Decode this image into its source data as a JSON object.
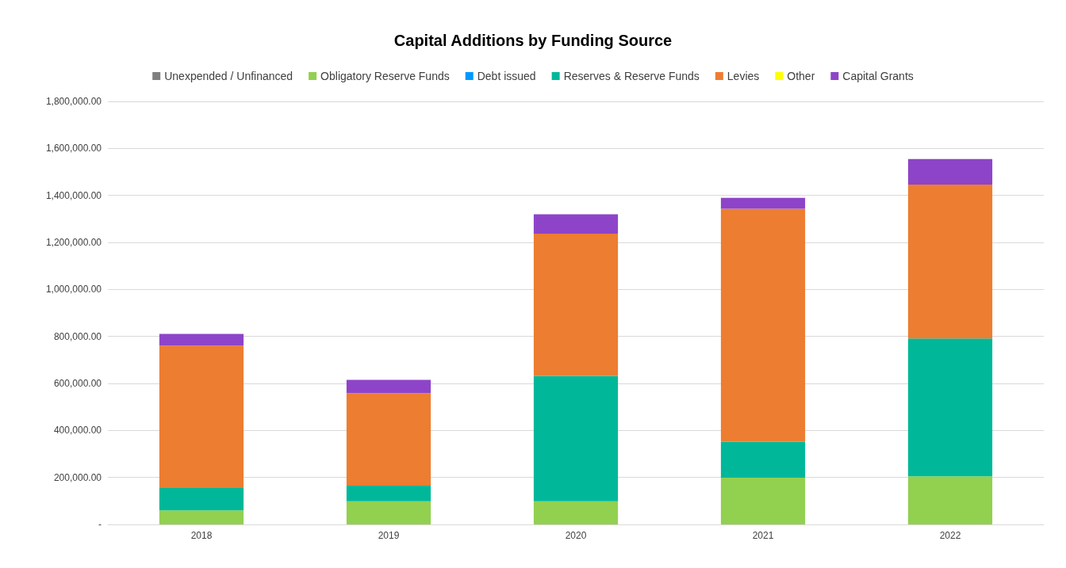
{
  "chart_data": {
    "type": "bar",
    "title": "Capital Additions by Funding Source",
    "stacked": true,
    "legend": "top",
    "grid": "y",
    "categories": [
      "2018",
      "2019",
      "2020",
      "2021",
      "2022"
    ],
    "series": [
      {
        "name": "Unexpended / Unfinanced",
        "color": "#7f7f7f",
        "values": [
          0,
          0,
          0,
          0,
          0
        ]
      },
      {
        "name": "Obligatory Reserve Funds",
        "color": "#92d050",
        "values": [
          60000,
          99000,
          99000,
          199000,
          205000
        ]
      },
      {
        "name": "Debt issued",
        "color": "#0099ff",
        "values": [
          0,
          0,
          0,
          0,
          0
        ]
      },
      {
        "name": "Reserves & Reserve Funds",
        "color": "#00b899",
        "values": [
          95000,
          66000,
          533000,
          152000,
          586000
        ]
      },
      {
        "name": "Levies",
        "color": "#ed7d31",
        "values": [
          606000,
          394000,
          605000,
          992000,
          655000
        ]
      },
      {
        "name": "Other",
        "color": "#ffff00",
        "values": [
          0,
          0,
          0,
          0,
          0
        ]
      },
      {
        "name": "Capital Grants",
        "color": "#8e44c8",
        "values": [
          50000,
          56000,
          83000,
          47000,
          109000
        ]
      }
    ],
    "ylim": [
      0,
      1800000
    ],
    "yticks": [
      {
        "value": 0,
        "label": "-"
      },
      {
        "value": 200000,
        "label": "200,000.00"
      },
      {
        "value": 400000,
        "label": "400,000.00"
      },
      {
        "value": 600000,
        "label": "600,000.00"
      },
      {
        "value": 800000,
        "label": "800,000.00"
      },
      {
        "value": 1000000,
        "label": "1,000,000.00"
      },
      {
        "value": 1200000,
        "label": "1,200,000.00"
      },
      {
        "value": 1400000,
        "label": "1,400,000.00"
      },
      {
        "value": 1600000,
        "label": "1,600,000.00"
      },
      {
        "value": 1800000,
        "label": "1,800,000.00"
      }
    ]
  }
}
